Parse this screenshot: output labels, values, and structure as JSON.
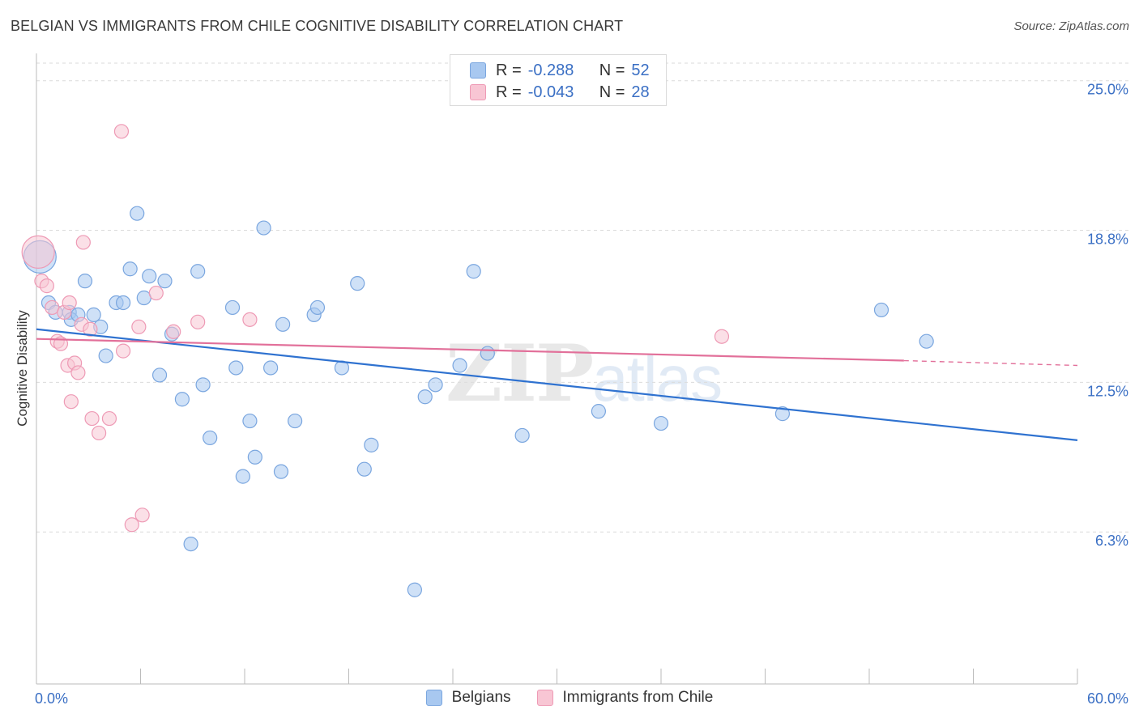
{
  "title": "BELGIAN VS IMMIGRANTS FROM CHILE COGNITIVE DISABILITY CORRELATION CHART",
  "source": "Source: ZipAtlas.com",
  "watermark": {
    "zip": "ZIP",
    "atlas": "atlas"
  },
  "legend_top": [
    {
      "r_label": "R =",
      "r_value": "-0.288",
      "n_label": "N =",
      "n_value": "52",
      "color": "#a8c8f0",
      "border": "#7aa6df"
    },
    {
      "r_label": "R =",
      "r_value": "-0.043",
      "n_label": "N =",
      "n_value": "28",
      "color": "#f8c6d4",
      "border": "#ee9ab5"
    }
  ],
  "legend_bottom": [
    {
      "label": "Belgians",
      "color": "#a8c8f0",
      "border": "#7aa6df"
    },
    {
      "label": "Immigrants from Chile",
      "color": "#f8c6d4",
      "border": "#ee9ab5"
    }
  ],
  "chart_data": {
    "type": "scatter",
    "title": "BELGIAN VS IMMIGRANTS FROM CHILE COGNITIVE DISABILITY CORRELATION CHART",
    "xlabel": "",
    "ylabel": "Cognitive Disability",
    "xlim": [
      0,
      60
    ],
    "ylim": [
      0,
      26.5
    ],
    "x_tick_labels": [
      {
        "value": 0,
        "label": "0.0%"
      },
      {
        "value": 60,
        "label": "60.0%"
      }
    ],
    "y_tick_labels": [
      {
        "value": 6.3,
        "label": "6.3%"
      },
      {
        "value": 12.5,
        "label": "12.5%"
      },
      {
        "value": 18.8,
        "label": "18.8%"
      },
      {
        "value": 25.0,
        "label": "25.0%"
      }
    ],
    "grid": true,
    "series": [
      {
        "name": "Belgians",
        "color": "#a8c8f0",
        "stroke": "#7aa6df",
        "line_color": "#2f72d0",
        "trend": {
          "x": [
            0,
            60
          ],
          "y": [
            14.7,
            10.1
          ]
        },
        "points": [
          [
            0.2,
            17.7,
            "large"
          ],
          [
            0.7,
            15.8
          ],
          [
            1.1,
            15.4
          ],
          [
            1.9,
            15.4
          ],
          [
            2.0,
            15.1
          ],
          [
            2.4,
            15.3
          ],
          [
            2.8,
            16.7
          ],
          [
            3.3,
            15.3
          ],
          [
            3.7,
            14.8
          ],
          [
            4.0,
            13.6
          ],
          [
            4.6,
            15.8
          ],
          [
            5.0,
            15.8
          ],
          [
            5.4,
            17.2
          ],
          [
            5.8,
            19.5
          ],
          [
            6.2,
            16.0
          ],
          [
            6.5,
            16.9
          ],
          [
            7.1,
            12.8
          ],
          [
            7.4,
            16.7
          ],
          [
            7.8,
            14.5
          ],
          [
            8.4,
            11.8
          ],
          [
            8.9,
            5.8
          ],
          [
            9.3,
            17.1
          ],
          [
            9.6,
            12.4
          ],
          [
            10.0,
            10.2
          ],
          [
            11.3,
            15.6
          ],
          [
            11.5,
            13.1
          ],
          [
            11.9,
            8.6
          ],
          [
            12.3,
            10.9
          ],
          [
            12.6,
            9.4
          ],
          [
            13.1,
            18.9
          ],
          [
            13.5,
            13.1
          ],
          [
            14.1,
            8.8
          ],
          [
            14.2,
            14.9
          ],
          [
            14.9,
            10.9
          ],
          [
            16.0,
            15.3
          ],
          [
            16.2,
            15.6
          ],
          [
            17.6,
            13.1
          ],
          [
            18.5,
            16.6
          ],
          [
            18.9,
            8.9
          ],
          [
            19.3,
            9.9
          ],
          [
            21.8,
            3.9
          ],
          [
            22.4,
            11.9
          ],
          [
            23.0,
            12.4
          ],
          [
            24.4,
            13.2
          ],
          [
            25.2,
            17.1
          ],
          [
            26.0,
            13.7
          ],
          [
            28.0,
            10.3
          ],
          [
            32.4,
            11.3
          ],
          [
            36.0,
            10.8
          ],
          [
            43.0,
            11.2
          ],
          [
            48.7,
            15.5
          ],
          [
            51.3,
            14.2
          ]
        ]
      },
      {
        "name": "Immigrants from Chile",
        "color": "#f8c6d4",
        "stroke": "#ee9ab5",
        "line_color": "#e2709a",
        "trend": {
          "x": [
            0,
            50
          ],
          "y": [
            14.3,
            13.4
          ]
        },
        "trend_dashed_to": {
          "x": 60,
          "y": 13.2
        },
        "points": [
          [
            0.1,
            17.9,
            "large"
          ],
          [
            0.3,
            16.7
          ],
          [
            0.6,
            16.5
          ],
          [
            0.9,
            15.6
          ],
          [
            1.2,
            14.2
          ],
          [
            1.4,
            14.1
          ],
          [
            1.6,
            15.4
          ],
          [
            1.8,
            13.2
          ],
          [
            1.9,
            15.8
          ],
          [
            2.0,
            11.7
          ],
          [
            2.2,
            13.3
          ],
          [
            2.4,
            12.9
          ],
          [
            2.6,
            14.9
          ],
          [
            3.1,
            14.7
          ],
          [
            3.2,
            11.0
          ],
          [
            3.6,
            10.4
          ],
          [
            4.2,
            11.0
          ],
          [
            5.0,
            13.8
          ],
          [
            4.9,
            22.9
          ],
          [
            5.5,
            6.6
          ],
          [
            5.9,
            14.8
          ],
          [
            6.1,
            7.0
          ],
          [
            6.9,
            16.2
          ],
          [
            7.9,
            14.6
          ],
          [
            9.3,
            15.0
          ],
          [
            12.3,
            15.1
          ],
          [
            39.5,
            14.4
          ],
          [
            2.7,
            18.3
          ]
        ]
      }
    ]
  }
}
